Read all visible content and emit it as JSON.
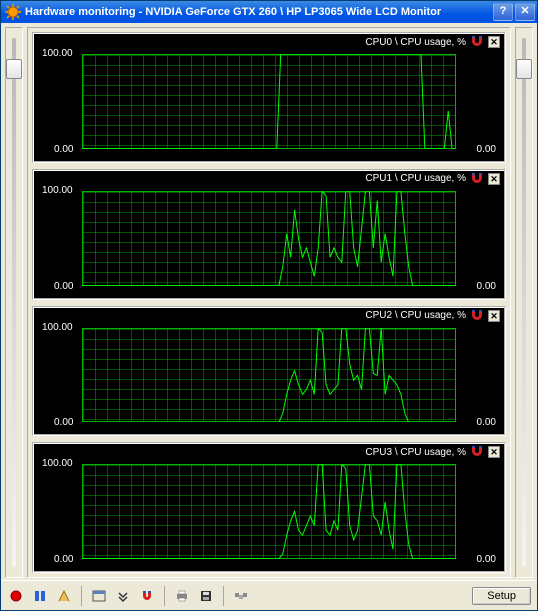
{
  "window": {
    "title": "Hardware monitoring - NVIDIA GeForce GTX 260 \\ HP LP3065 Wide LCD Monitor",
    "help_label": "?",
    "close_label": "✕"
  },
  "sliders": {
    "left_thumb_pct": 4,
    "right_thumb_pct": 4
  },
  "toolbar": {
    "setup_label": "Setup"
  },
  "chart_defaults": {
    "background_color": "#000000",
    "grid_color": "#00b400",
    "trace_color": "#00ff00",
    "grid_x_cells": 32,
    "grid_y_cells": 9,
    "y_max_label": "100.00",
    "y_min_label": "0.00",
    "y_right_label": "0.00",
    "ylim": [
      0,
      100
    ]
  },
  "charts": [
    {
      "title": "CPU0 \\ CPU usage, %",
      "data": [
        0,
        0,
        0,
        0,
        0,
        0,
        0,
        0,
        0,
        0,
        0,
        0,
        0,
        0,
        0,
        0,
        0,
        0,
        0,
        0,
        0,
        0,
        0,
        0,
        0,
        0,
        0,
        0,
        0,
        0,
        0,
        0,
        0,
        0,
        0,
        0,
        0,
        0,
        0,
        0,
        0,
        0,
        0,
        0,
        0,
        0,
        0,
        0,
        0,
        0,
        0,
        100,
        100,
        100,
        100,
        100,
        100,
        100,
        100,
        100,
        100,
        100,
        100,
        100,
        100,
        100,
        100,
        100,
        100,
        100,
        100,
        100,
        100,
        100,
        100,
        100,
        100,
        100,
        100,
        100,
        100,
        100,
        100,
        100,
        100,
        100,
        100,
        100,
        0,
        0,
        0,
        0,
        0,
        0,
        40,
        0,
        0
      ]
    },
    {
      "title": "CPU1 \\ CPU usage, %",
      "data": [
        0,
        0,
        0,
        0,
        0,
        0,
        0,
        0,
        0,
        0,
        0,
        0,
        0,
        0,
        0,
        0,
        0,
        0,
        0,
        0,
        0,
        0,
        0,
        0,
        0,
        0,
        0,
        0,
        0,
        0,
        0,
        0,
        0,
        0,
        0,
        0,
        0,
        0,
        0,
        0,
        0,
        0,
        0,
        0,
        0,
        0,
        0,
        0,
        0,
        0,
        0,
        20,
        55,
        30,
        80,
        50,
        30,
        40,
        25,
        10,
        40,
        100,
        95,
        30,
        40,
        30,
        25,
        100,
        100,
        40,
        20,
        60,
        100,
        100,
        40,
        90,
        25,
        55,
        30,
        10,
        100,
        100,
        55,
        20,
        0,
        0,
        0,
        0,
        0,
        0,
        0,
        0,
        0,
        0,
        0,
        0
      ]
    },
    {
      "title": "CPU2 \\ CPU usage, %",
      "data": [
        0,
        0,
        0,
        0,
        0,
        0,
        0,
        0,
        0,
        0,
        0,
        0,
        0,
        0,
        0,
        0,
        0,
        0,
        0,
        0,
        0,
        0,
        0,
        0,
        0,
        0,
        0,
        0,
        0,
        0,
        0,
        0,
        0,
        0,
        0,
        0,
        0,
        0,
        0,
        0,
        0,
        0,
        0,
        0,
        0,
        0,
        0,
        0,
        0,
        0,
        0,
        10,
        30,
        45,
        55,
        40,
        30,
        35,
        45,
        30,
        100,
        95,
        40,
        30,
        35,
        40,
        100,
        100,
        62,
        45,
        50,
        35,
        100,
        100,
        52,
        50,
        100,
        30,
        50,
        45,
        40,
        30,
        10,
        0,
        0,
        0,
        0,
        0,
        0,
        0,
        0,
        0,
        0,
        0,
        0,
        0
      ]
    },
    {
      "title": "CPU3 \\ CPU usage, %",
      "data": [
        0,
        0,
        0,
        0,
        0,
        0,
        0,
        0,
        0,
        0,
        0,
        0,
        0,
        0,
        0,
        0,
        0,
        0,
        0,
        0,
        0,
        0,
        0,
        0,
        0,
        0,
        0,
        0,
        0,
        0,
        0,
        0,
        0,
        0,
        0,
        0,
        0,
        0,
        0,
        0,
        0,
        0,
        0,
        0,
        0,
        0,
        0,
        0,
        0,
        0,
        0,
        5,
        25,
        40,
        50,
        30,
        25,
        35,
        45,
        35,
        100,
        100,
        30,
        25,
        40,
        30,
        100,
        95,
        35,
        20,
        30,
        65,
        100,
        100,
        45,
        40,
        25,
        60,
        30,
        10,
        100,
        100,
        50,
        15,
        0,
        0,
        0,
        0,
        0,
        0,
        0,
        0,
        0,
        0,
        0,
        0
      ]
    }
  ]
}
